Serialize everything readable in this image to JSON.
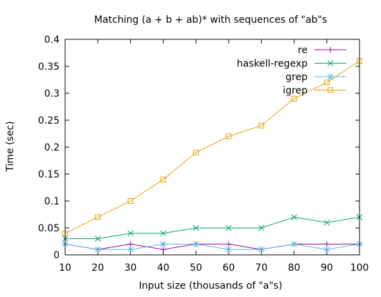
{
  "chart_data": {
    "type": "line",
    "title": "Matching (a + b + ab)* with sequences of \"ab\"s",
    "xlabel": "Input size (thousands of \"a\"s)",
    "ylabel": "Time (sec)",
    "xlim": [
      10,
      100
    ],
    "ylim": [
      0,
      0.4
    ],
    "xticks": [
      "10",
      "20",
      "30",
      "40",
      "50",
      "60",
      "70",
      "80",
      "90",
      "100"
    ],
    "yticks": [
      "0",
      "0.05",
      "0.1",
      "0.15",
      "0.2",
      "0.25",
      "0.3",
      "0.35",
      "0.4"
    ],
    "grid": false,
    "legend_position": "top-right",
    "x": [
      10,
      20,
      30,
      40,
      50,
      60,
      70,
      80,
      90,
      100
    ],
    "series": [
      {
        "name": "re",
        "color": "#94009f",
        "marker": "plus",
        "values": [
          0.02,
          0.01,
          0.02,
          0.01,
          0.02,
          0.02,
          0.01,
          0.02,
          0.02,
          0.02
        ]
      },
      {
        "name": "haskell-regexp",
        "color": "#009e73",
        "marker": "cross",
        "values": [
          0.03,
          0.03,
          0.04,
          0.04,
          0.05,
          0.05,
          0.05,
          0.07,
          0.06,
          0.07
        ]
      },
      {
        "name": "grep",
        "color": "#56b4e9",
        "marker": "star",
        "values": [
          0.02,
          0.01,
          0.01,
          0.02,
          0.02,
          0.01,
          0.01,
          0.02,
          0.01,
          0.02
        ]
      },
      {
        "name": "igrep",
        "color": "#e69f00",
        "marker": "box",
        "values": [
          0.04,
          0.07,
          0.1,
          0.14,
          0.19,
          0.22,
          0.24,
          0.29,
          0.32,
          0.36
        ]
      }
    ]
  }
}
